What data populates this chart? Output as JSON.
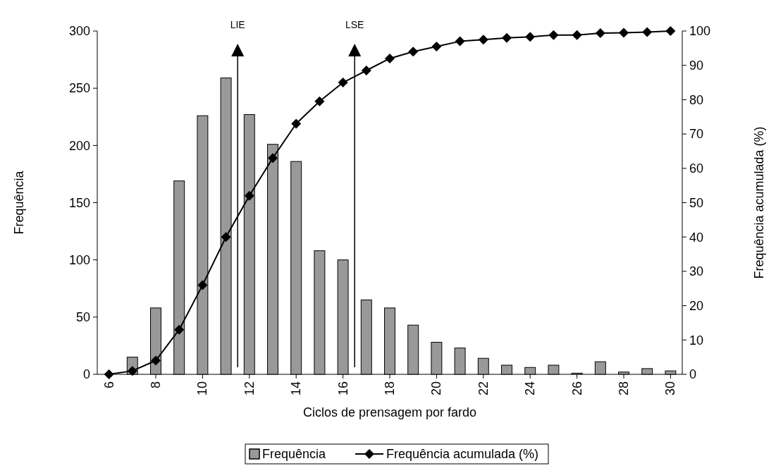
{
  "chart_data": {
    "type": "bar",
    "xlabel": "Ciclos de prensagem por fardo",
    "ylabel": "Frequência",
    "y2label": "Frequência acumulada (%)",
    "x": [
      6,
      7,
      8,
      9,
      10,
      11,
      12,
      13,
      14,
      15,
      16,
      17,
      18,
      19,
      20,
      21,
      22,
      23,
      24,
      25,
      26,
      27,
      28,
      29,
      30
    ],
    "xlim": [
      5.5,
      30.5
    ],
    "xticks": [
      6,
      8,
      10,
      12,
      14,
      16,
      18,
      20,
      22,
      24,
      26,
      28,
      30
    ],
    "ylim": [
      0,
      300
    ],
    "yticks": [
      0,
      50,
      100,
      150,
      200,
      250,
      300
    ],
    "y2lim": [
      0,
      100
    ],
    "y2ticks": [
      0,
      10,
      20,
      30,
      40,
      50,
      60,
      70,
      80,
      90,
      100
    ],
    "series": [
      {
        "name": "Frequência",
        "color": "#999999",
        "values": [
          0,
          15,
          58,
          169,
          226,
          259,
          227,
          201,
          186,
          108,
          100,
          65,
          58,
          43,
          28,
          23,
          14,
          8,
          6,
          8,
          1,
          11,
          2,
          5,
          3
        ]
      },
      {
        "name": "Frequência acumulada (%)",
        "type": "line",
        "axis": "y2",
        "color": "#000000",
        "marker": "diamond",
        "values": [
          0,
          1,
          4,
          13,
          26,
          40,
          52,
          63,
          73,
          79.5,
          85,
          88.5,
          92,
          94,
          95.5,
          97,
          97.5,
          98,
          98.3,
          98.8,
          98.8,
          99.4,
          99.5,
          99.7,
          100
        ]
      }
    ],
    "ref_lines": [
      {
        "axis": "x",
        "value": 11.5,
        "label": "LIE"
      },
      {
        "axis": "x",
        "value": 16.5,
        "label": "LSE"
      }
    ],
    "legend": "bottom",
    "grid": false
  }
}
